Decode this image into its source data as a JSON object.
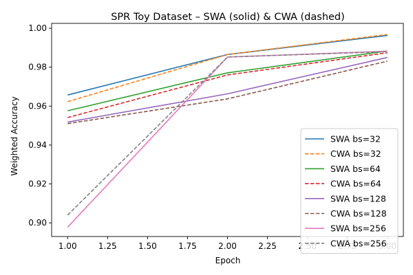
{
  "chart_data": {
    "type": "line",
    "title": "SPR Toy Dataset – SWA (solid) & CWA (dashed)",
    "xlabel": "Epoch",
    "ylabel": "Weighted Accuracy",
    "xlim": [
      0.9,
      3.1
    ],
    "ylim": [
      0.893,
      1.0025
    ],
    "x_ticks": [
      1.0,
      1.25,
      1.5,
      1.75,
      2.0,
      2.25,
      2.5,
      2.75,
      3.0
    ],
    "x_tick_labels": [
      "1.00",
      "1.25",
      "1.50",
      "1.75",
      "2.00",
      "2.25",
      "2.50",
      "2.75",
      "3.00"
    ],
    "y_ticks": [
      0.9,
      0.92,
      0.94,
      0.96,
      0.98,
      1.0
    ],
    "y_tick_labels": [
      "0.90",
      "0.92",
      "0.94",
      "0.96",
      "0.98",
      "1.00"
    ],
    "grid": false,
    "legend_position": "lower-right",
    "x": [
      1,
      2,
      3
    ],
    "series": [
      {
        "name": "SWA bs=32",
        "values": [
          0.9657,
          0.9865,
          0.9963
        ],
        "color": "#1f77b4",
        "style": "solid"
      },
      {
        "name": "CWA bs=32",
        "values": [
          0.9623,
          0.9865,
          0.9968
        ],
        "color": "#ff7f0e",
        "style": "dashed"
      },
      {
        "name": "SWA bs=64",
        "values": [
          0.9576,
          0.9771,
          0.9883
        ],
        "color": "#2ca02c",
        "style": "solid"
      },
      {
        "name": "CWA bs=64",
        "values": [
          0.9541,
          0.976,
          0.9874
        ],
        "color": "#d62728",
        "style": "dashed"
      },
      {
        "name": "SWA bs=128",
        "values": [
          0.9518,
          0.9663,
          0.985
        ],
        "color": "#9467bd",
        "style": "solid"
      },
      {
        "name": "CWA bs=128",
        "values": [
          0.951,
          0.9637,
          0.9831
        ],
        "color": "#8c564b",
        "style": "dashed"
      },
      {
        "name": "SWA bs=256",
        "values": [
          0.8978,
          0.9852,
          0.9882
        ],
        "color": "#e377c2",
        "style": "solid"
      },
      {
        "name": "CWA bs=256",
        "values": [
          0.904,
          0.9852,
          0.988
        ],
        "color": "#7f7f7f",
        "style": "dashed"
      }
    ]
  }
}
